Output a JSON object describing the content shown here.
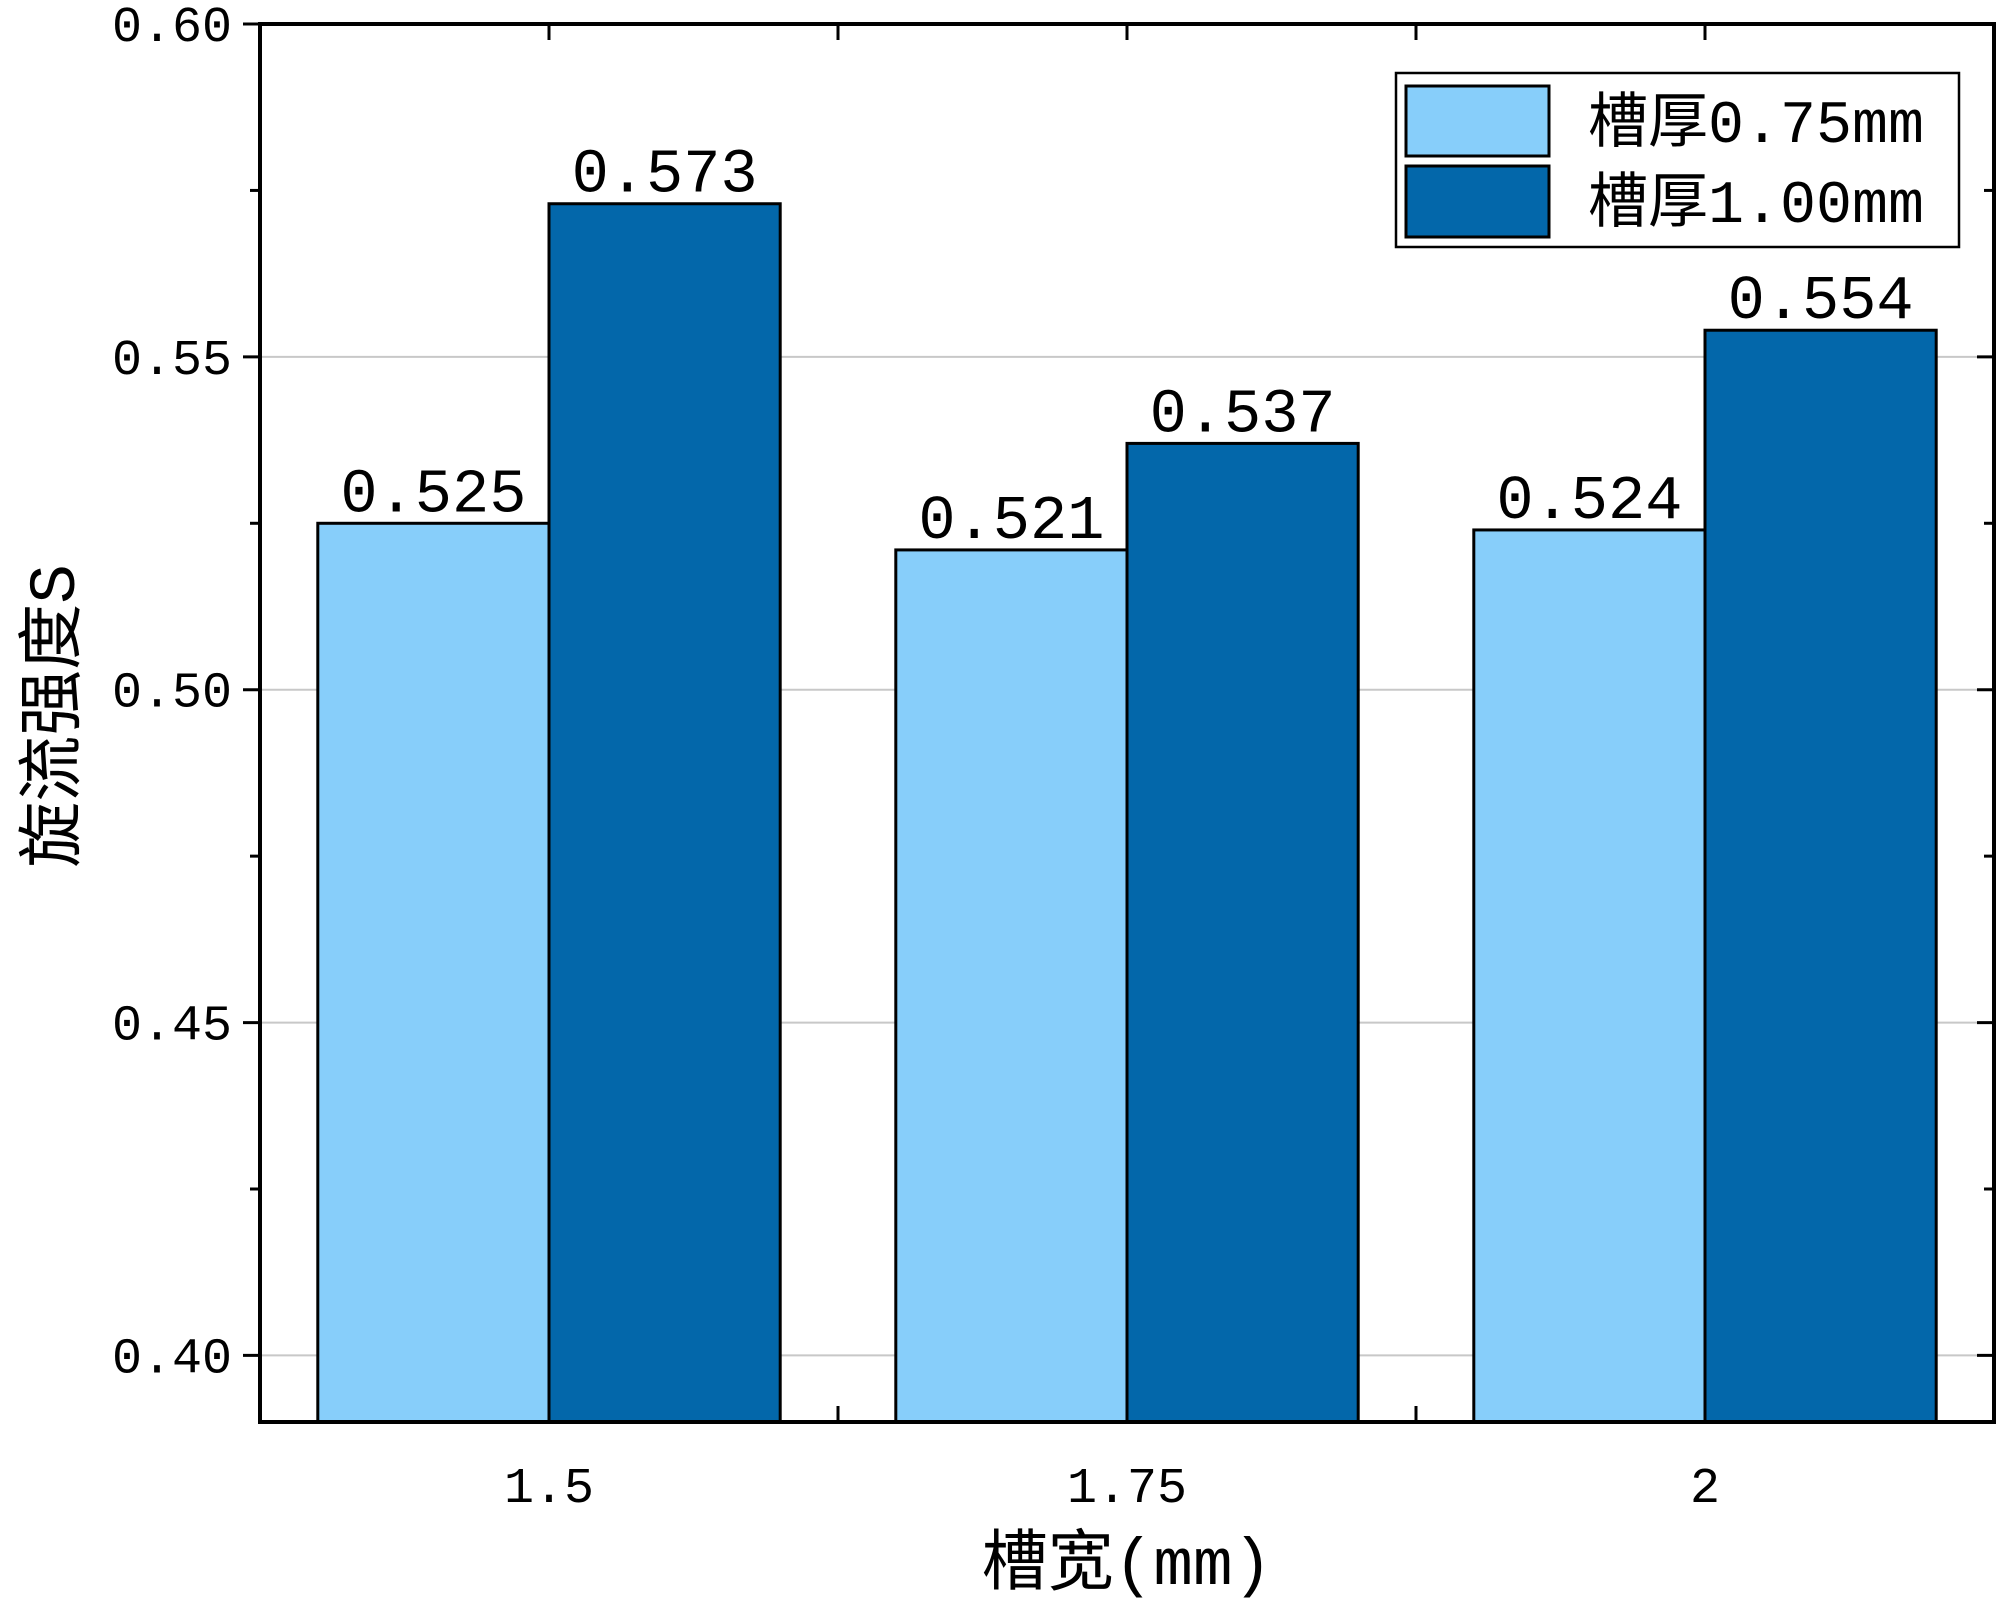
{
  "chart_data": {
    "type": "bar",
    "categories": [
      "1.5",
      "1.75",
      "2"
    ],
    "series": [
      {
        "name": "槽厚0.75mm",
        "values": [
          0.525,
          0.521,
          0.524
        ],
        "color": "#87CEFA"
      },
      {
        "name": "槽厚1.00mm",
        "values": [
          0.573,
          0.537,
          0.554
        ],
        "color": "#0367AA"
      }
    ],
    "xlabel": "槽宽(mm)",
    "ylabel": "旋流强度S",
    "ylim": [
      0.39,
      0.6
    ],
    "yticks": [
      0.4,
      0.45,
      0.5,
      0.55,
      0.6
    ],
    "ytick_labels": [
      "0.40",
      "0.45",
      "0.50",
      "0.55",
      "0.60"
    ],
    "data_labels": true,
    "grid": {
      "horizontal": true,
      "vertical": false,
      "color": "#C8C8C8"
    },
    "legend": {
      "position": "top-right"
    }
  }
}
